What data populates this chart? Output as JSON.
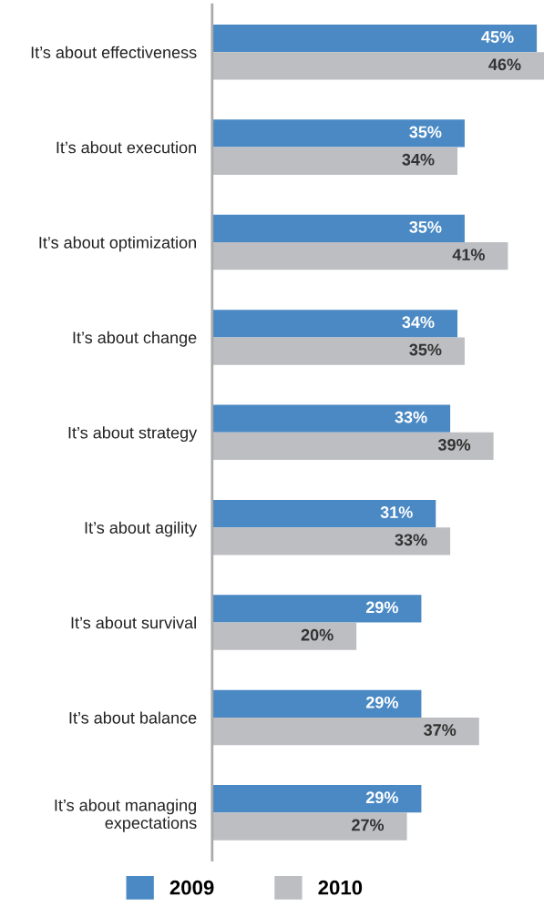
{
  "chart_data": {
    "type": "bar",
    "orientation": "horizontal",
    "tick_labels": "y",
    "legend": "bottom",
    "grid": false,
    "categories": [
      "It’s about effectiveness",
      "It’s about execution",
      "It’s about optimization",
      "It’s about change",
      "It’s about strategy",
      "It’s about agility",
      "It’s about survival",
      "It’s about balance",
      "It’s about managing\nexpectations"
    ],
    "series": [
      {
        "name": "2009",
        "color": "#4a89c4",
        "values": [
          45,
          35,
          35,
          34,
          33,
          31,
          29,
          29,
          29
        ],
        "value_labels": [
          "45%",
          "35%",
          "35%",
          "34%",
          "33%",
          "31%",
          "29%",
          "29%",
          "29%"
        ]
      },
      {
        "name": "2010",
        "color": "#bdbec2",
        "values": [
          46,
          34,
          41,
          35,
          39,
          33,
          20,
          37,
          27
        ],
        "value_labels": [
          "46%",
          "34%",
          "41%",
          "35%",
          "39%",
          "33%",
          "20%",
          "37%",
          "27%"
        ]
      }
    ]
  }
}
